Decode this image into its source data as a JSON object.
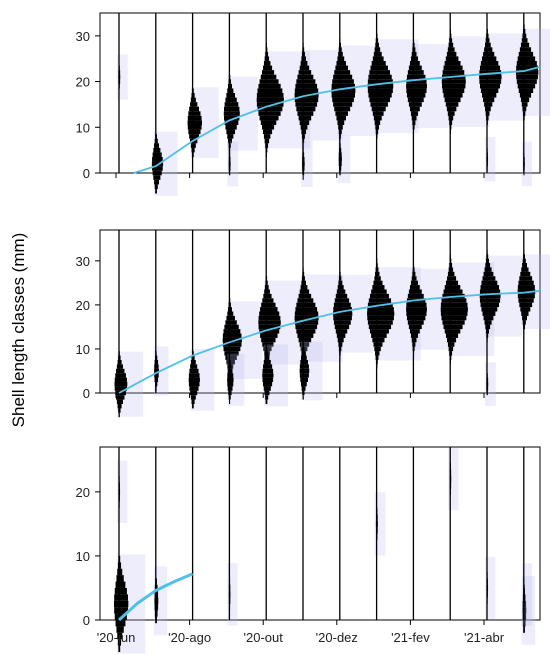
{
  "figure": {
    "ylabel": "Shell length classes (mm)",
    "x_tick_labels": [
      "'20-jun",
      "'20-ago",
      "'20-out",
      "'20-dez",
      "'21-fev",
      "'21-abr"
    ],
    "colors": {
      "fit_line": "#4fc0e8",
      "histogram": "#000000",
      "shading": "#b8b8f0",
      "axis": "#000000"
    }
  },
  "chart_data": [
    {
      "type": "histogram-timeseries",
      "panel": 1,
      "ylim": [
        0,
        35
      ],
      "yticks": [
        0,
        10,
        20,
        30
      ],
      "sample_labels": [
        "'20-jun",
        "'20-ago",
        "'20-out",
        "'20-dez",
        "'21-fev",
        "'21-abr"
      ],
      "n_samples": 12,
      "modes": [
        [
          {
            "y": 21,
            "w": 0.06
          }
        ],
        [
          {
            "y": 2,
            "w": 0.35
          }
        ],
        [
          {
            "y": 11,
            "w": 0.45
          }
        ],
        [
          {
            "y": 13,
            "w": 0.5
          },
          {
            "y": 2,
            "w": 0.06
          }
        ],
        [
          {
            "y": 16,
            "w": 0.85
          }
        ],
        [
          {
            "y": 17,
            "w": 0.75
          },
          {
            "y": 2,
            "w": 0.08
          }
        ],
        [
          {
            "y": 18,
            "w": 0.75
          },
          {
            "y": 3,
            "w": 0.1
          }
        ],
        [
          {
            "y": 19,
            "w": 0.8
          }
        ],
        [
          {
            "y": 19,
            "w": 0.65
          }
        ],
        [
          {
            "y": 20,
            "w": 0.75
          }
        ],
        [
          {
            "y": 21,
            "w": 0.7
          },
          {
            "y": 3,
            "w": 0.05
          }
        ],
        [
          {
            "y": 22,
            "w": 0.7
          },
          {
            "y": 2,
            "w": 0.05
          }
        ]
      ],
      "growth_curve": {
        "x": [
          0.4,
          1.0,
          2.0,
          3.0,
          4.0,
          5.0,
          6.0,
          7.0,
          8.0,
          9.0,
          10.0,
          11.0,
          12.0
        ],
        "y": [
          0,
          1.5,
          7,
          11.5,
          14.5,
          16.8,
          18.3,
          19.4,
          20.3,
          21.0,
          21.7,
          22.3,
          23.2
        ]
      }
    },
    {
      "type": "histogram-timeseries",
      "panel": 2,
      "ylim": [
        0,
        37
      ],
      "yticks": [
        0,
        10,
        20,
        30
      ],
      "n_samples": 12,
      "modes": [
        [
          {
            "y": 2,
            "w": 0.4
          }
        ],
        [
          {
            "y": 5,
            "w": 0.15
          }
        ],
        [
          {
            "y": 3,
            "w": 0.35
          }
        ],
        [
          {
            "y": 12,
            "w": 0.6
          },
          {
            "y": 3,
            "w": 0.2
          }
        ],
        [
          {
            "y": 16,
            "w": 0.7
          },
          {
            "y": 4,
            "w": 0.35
          }
        ],
        [
          {
            "y": 17,
            "w": 0.75
          },
          {
            "y": 5,
            "w": 0.3
          }
        ],
        [
          {
            "y": 18,
            "w": 0.6
          }
        ],
        [
          {
            "y": 18,
            "w": 0.85
          }
        ],
        [
          {
            "y": 19,
            "w": 0.65
          }
        ],
        [
          {
            "y": 19,
            "w": 0.85
          }
        ],
        [
          {
            "y": 22,
            "w": 0.65
          },
          {
            "y": 2,
            "w": 0.06
          }
        ],
        [
          {
            "y": 23,
            "w": 0.55
          }
        ]
      ],
      "growth_curve": {
        "x": [
          0.0,
          1.0,
          2.0,
          3.0,
          4.0,
          5.0,
          6.0,
          7.0,
          8.0,
          9.0,
          10.0,
          11.0,
          12.0
        ],
        "y": [
          0,
          4.5,
          8.5,
          11.5,
          14.2,
          16.4,
          18.4,
          19.8,
          21.0,
          21.8,
          22.4,
          22.8,
          23.2
        ]
      }
    },
    {
      "type": "histogram-timeseries",
      "panel": 3,
      "ylim": [
        0,
        27
      ],
      "yticks": [
        0,
        10,
        20
      ],
      "n_samples": 12,
      "modes": [
        [
          {
            "y": 2.5,
            "w": 0.45
          },
          {
            "y": 20,
            "w": 0.05
          }
        ],
        [
          {
            "y": 3,
            "w": 0.12
          }
        ],
        [],
        [
          {
            "y": 4,
            "w": 0.05
          }
        ],
        [],
        [],
        [],
        [
          {
            "y": 15,
            "w": 0.06
          }
        ],
        [],
        [
          {
            "y": 22,
            "w": 0.05
          }
        ],
        [
          {
            "y": 5,
            "w": 0.05
          }
        ],
        [
          {
            "y": 1.5,
            "w": 0.12
          },
          {
            "y": 4,
            "w": 0.05
          }
        ]
      ],
      "growth_curve": {
        "x": [
          0.0,
          0.5,
          1.0,
          1.5,
          2.0
        ],
        "y": [
          0,
          2.6,
          4.6,
          6.0,
          7.2
        ]
      }
    }
  ]
}
